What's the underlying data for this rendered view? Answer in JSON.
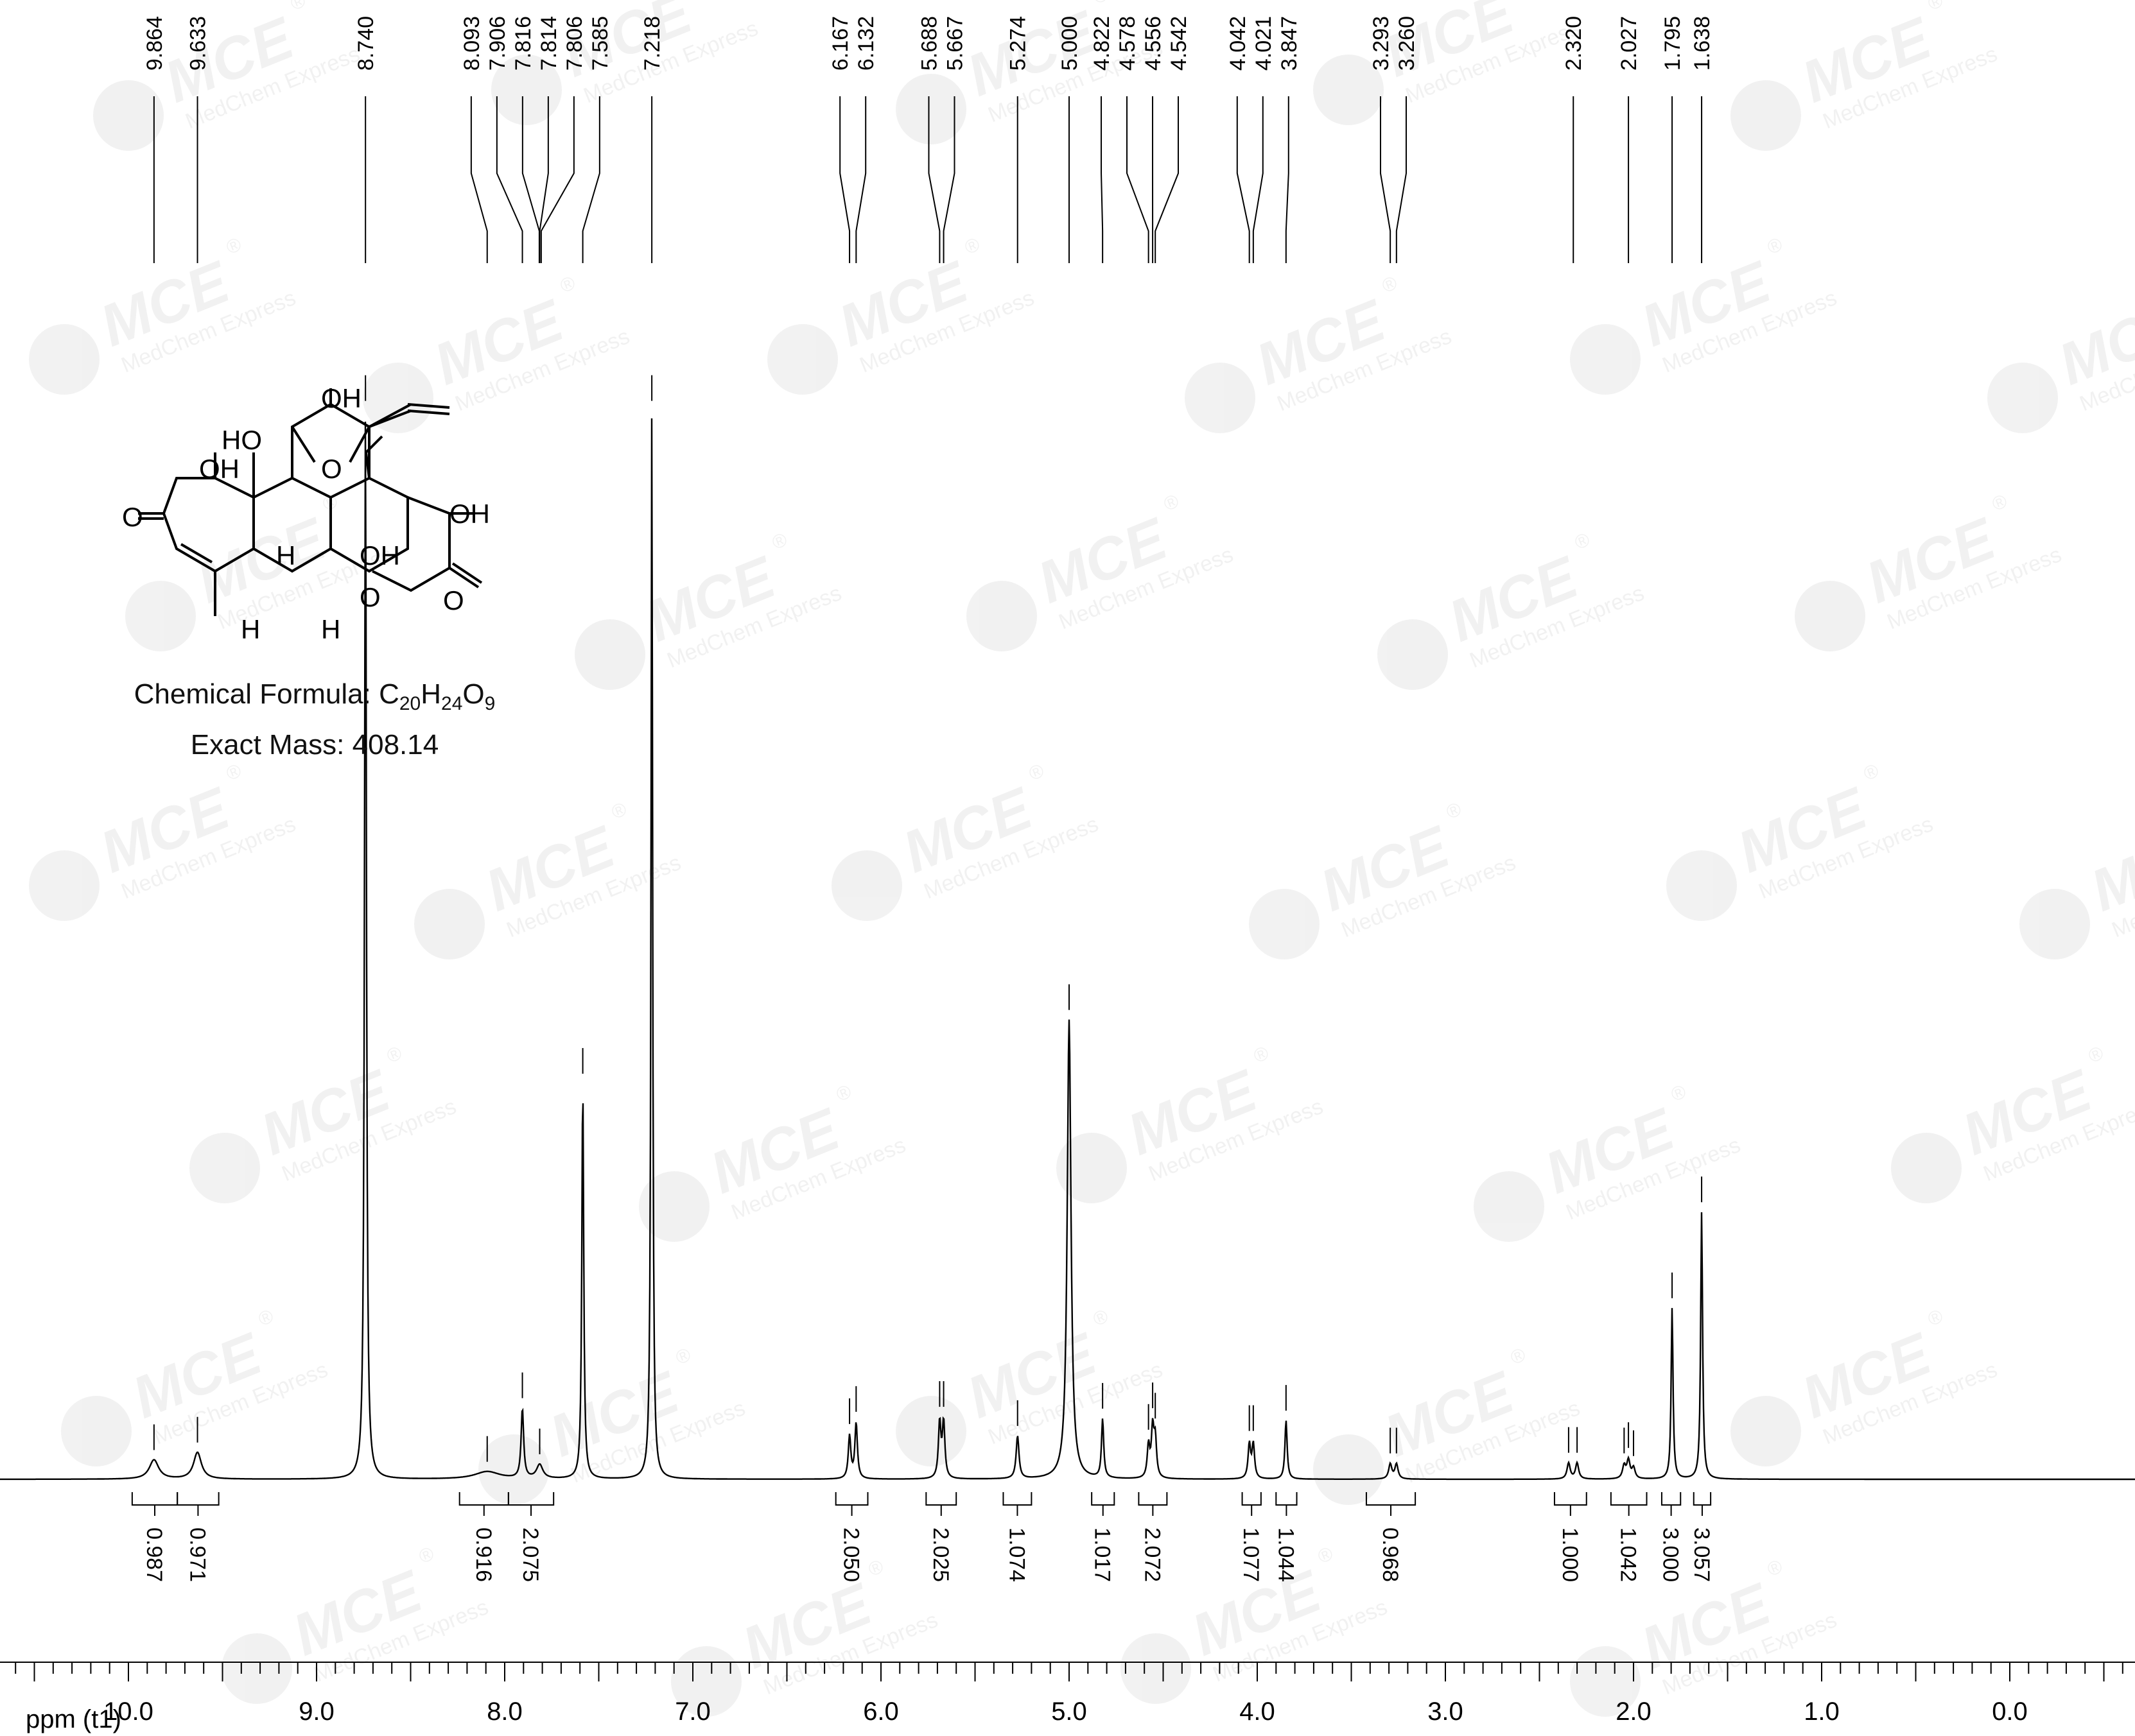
{
  "chart_data": {
    "type": "line",
    "xlabel": "ppm (t1)",
    "xlim": [
      10.8,
      -0.8
    ],
    "x_ticks": [
      "10.0",
      "9.0",
      "8.0",
      "7.0",
      "6.0",
      "5.0",
      "4.0",
      "3.0",
      "2.0",
      "1.0",
      "0.0"
    ],
    "x_tick_values": [
      10.0,
      9.0,
      8.0,
      7.0,
      6.0,
      5.0,
      4.0,
      3.0,
      2.0,
      1.0,
      0.0
    ],
    "ylim": [
      0,
      1.0
    ],
    "peak_labels": [
      "9.864",
      "9.633",
      "8.740",
      "8.093",
      "7.906",
      "7.816",
      "7.814",
      "7.806",
      "7.585",
      "7.218",
      "6.167",
      "6.132",
      "5.688",
      "5.667",
      "5.274",
      "5.000",
      "4.822",
      "4.578",
      "4.556",
      "4.542",
      "4.042",
      "4.021",
      "3.847",
      "3.293",
      "3.260",
      "2.320",
      "2.027",
      "1.795",
      "1.638"
    ],
    "peaks": [
      {
        "x": 9.864,
        "height": 0.018,
        "width": 0.03
      },
      {
        "x": 9.633,
        "height": 0.025,
        "width": 0.025
      },
      {
        "x": 8.74,
        "height": 1.0,
        "width": 0.006
      },
      {
        "x": 8.093,
        "height": 0.007,
        "width": 0.08
      },
      {
        "x": 7.906,
        "height": 0.065,
        "width": 0.008
      },
      {
        "x": 7.814,
        "height": 0.013,
        "width": 0.02
      },
      {
        "x": 7.585,
        "height": 0.37,
        "width": 0.006
      },
      {
        "x": 7.218,
        "height": 1.0,
        "width": 0.005
      },
      {
        "x": 6.167,
        "height": 0.04,
        "width": 0.008
      },
      {
        "x": 6.132,
        "height": 0.052,
        "width": 0.008
      },
      {
        "x": 5.688,
        "height": 0.052,
        "width": 0.008
      },
      {
        "x": 5.667,
        "height": 0.052,
        "width": 0.008
      },
      {
        "x": 5.274,
        "height": 0.04,
        "width": 0.009
      },
      {
        "x": 5.0,
        "height": 0.43,
        "width": 0.012
      },
      {
        "x": 4.822,
        "height": 0.055,
        "width": 0.007
      },
      {
        "x": 4.578,
        "height": 0.03,
        "width": 0.008
      },
      {
        "x": 4.556,
        "height": 0.045,
        "width": 0.008
      },
      {
        "x": 4.542,
        "height": 0.035,
        "width": 0.008
      },
      {
        "x": 4.042,
        "height": 0.032,
        "width": 0.008
      },
      {
        "x": 4.021,
        "height": 0.032,
        "width": 0.008
      },
      {
        "x": 3.847,
        "height": 0.055,
        "width": 0.007
      },
      {
        "x": 3.293,
        "height": 0.014,
        "width": 0.01
      },
      {
        "x": 3.26,
        "height": 0.014,
        "width": 0.01
      },
      {
        "x": 2.345,
        "height": 0.015,
        "width": 0.01
      },
      {
        "x": 2.3,
        "height": 0.015,
        "width": 0.01
      },
      {
        "x": 2.05,
        "height": 0.012,
        "width": 0.01
      },
      {
        "x": 2.027,
        "height": 0.017,
        "width": 0.01
      },
      {
        "x": 2.0,
        "height": 0.01,
        "width": 0.01
      },
      {
        "x": 1.795,
        "height": 0.16,
        "width": 0.006
      },
      {
        "x": 1.638,
        "height": 0.25,
        "width": 0.006
      }
    ],
    "integrals": [
      {
        "from": 9.98,
        "to": 9.74,
        "value": "0.987"
      },
      {
        "from": 9.74,
        "to": 9.52,
        "value": "0.971"
      },
      {
        "from": 8.24,
        "to": 7.98,
        "value": "0.916"
      },
      {
        "from": 7.98,
        "to": 7.74,
        "value": "2.075"
      },
      {
        "from": 6.24,
        "to": 6.07,
        "value": "2.050"
      },
      {
        "from": 5.76,
        "to": 5.6,
        "value": "2.025"
      },
      {
        "from": 5.35,
        "to": 5.2,
        "value": "1.074"
      },
      {
        "from": 4.88,
        "to": 4.76,
        "value": "1.017"
      },
      {
        "from": 4.63,
        "to": 4.48,
        "value": "2.072"
      },
      {
        "from": 4.08,
        "to": 3.98,
        "value": "1.077"
      },
      {
        "from": 3.9,
        "to": 3.79,
        "value": "1.044"
      },
      {
        "from": 3.42,
        "to": 3.16,
        "value": "0.968"
      },
      {
        "from": 2.42,
        "to": 2.25,
        "value": "1.000"
      },
      {
        "from": 2.12,
        "to": 1.93,
        "value": "1.042"
      },
      {
        "from": 1.85,
        "to": 1.75,
        "value": "3.000"
      },
      {
        "from": 1.68,
        "to": 1.59,
        "value": "3.057"
      }
    ]
  },
  "structure": {
    "labels": {
      "oh_top": "OH",
      "ho_upper": "HO",
      "o_bridge": "O",
      "oh_left": "OH",
      "oh_right": "OH",
      "oh_center": "OH",
      "o_ketone": "O",
      "o_lactone_ring": "O",
      "o_lactone_carbonyl": "O",
      "h_1": "H",
      "h_2": "H",
      "h_3": "H"
    },
    "formula_label": "Chemical Formula: ",
    "formula_parts": [
      "C",
      "20",
      "H",
      "24",
      "O",
      "9"
    ],
    "mass_label": "Exact Mass: 408.14"
  },
  "watermark": {
    "brand": "MCE",
    "subtitle": "MedChem Express",
    "registered": "®"
  }
}
